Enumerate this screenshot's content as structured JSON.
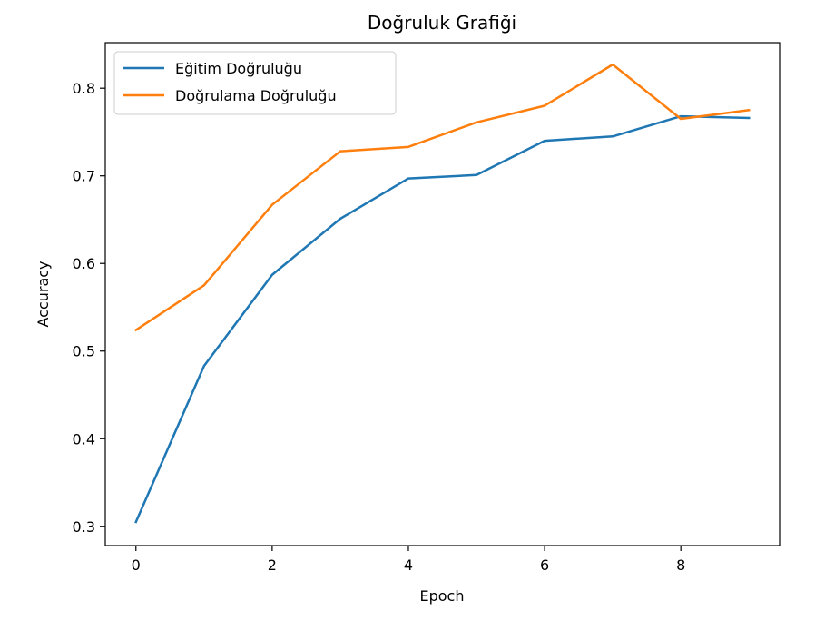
{
  "chart_data": {
    "type": "line",
    "title": "Doğruluk Grafiği",
    "xlabel": "Epoch",
    "ylabel": "Accuracy",
    "xlim": [
      -0.45,
      9.45
    ],
    "ylim": [
      0.278,
      0.852
    ],
    "x_ticks": [
      0,
      2,
      4,
      6,
      8
    ],
    "x_tick_labels": [
      "0",
      "2",
      "4",
      "6",
      "8"
    ],
    "y_ticks": [
      0.3,
      0.4,
      0.5,
      0.6,
      0.7,
      0.8
    ],
    "y_tick_labels": [
      "0.3",
      "0.4",
      "0.5",
      "0.6",
      "0.7",
      "0.8"
    ],
    "grid": false,
    "legend_position": "upper-left",
    "x": [
      0,
      1,
      2,
      3,
      4,
      5,
      6,
      7,
      8,
      9
    ],
    "series": [
      {
        "name": "Eğitim Doğruluğu",
        "color": "#1f77b4",
        "values": [
          0.305,
          0.483,
          0.587,
          0.651,
          0.697,
          0.701,
          0.74,
          0.745,
          0.768,
          0.766
        ]
      },
      {
        "name": "Doğrulama Doğruluğu",
        "color": "#ff7f0e",
        "values": [
          0.524,
          0.575,
          0.667,
          0.728,
          0.733,
          0.761,
          0.78,
          0.827,
          0.765,
          0.775
        ]
      }
    ]
  }
}
